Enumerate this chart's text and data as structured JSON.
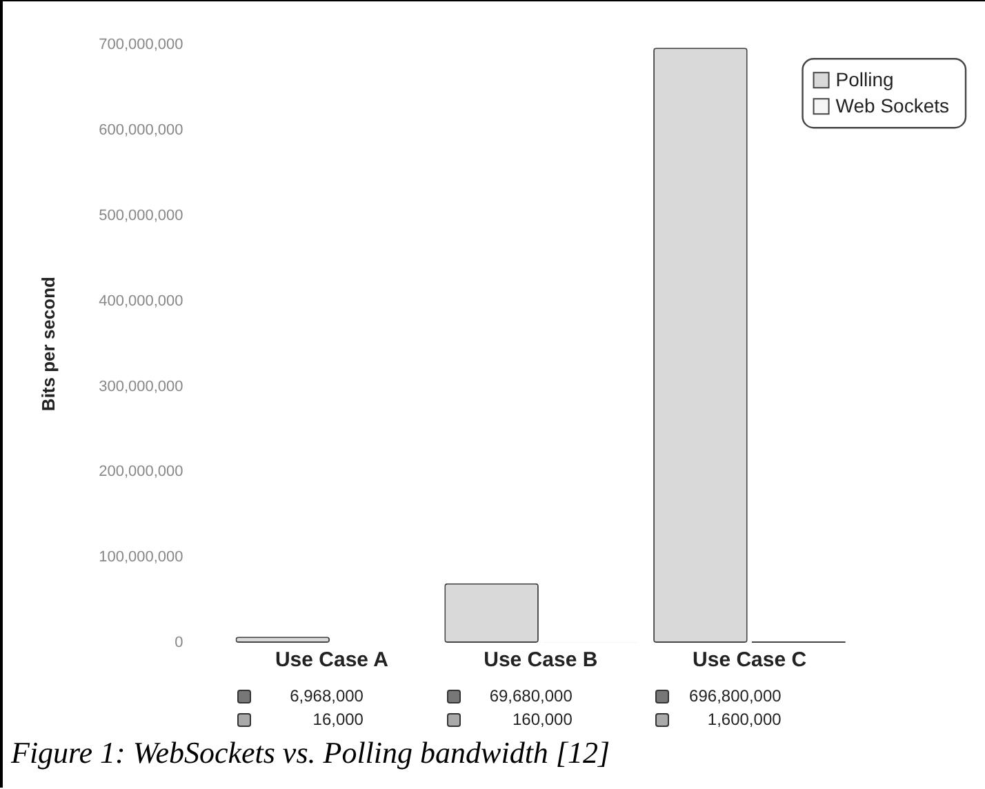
{
  "chart_data": {
    "type": "bar",
    "ylabel": "Bits per second",
    "categories": [
      "Use Case A",
      "Use Case B",
      "Use Case C"
    ],
    "series": [
      {
        "name": "Polling",
        "color": "#d9d9d9",
        "values": [
          6968000,
          69680000,
          696800000
        ],
        "value_labels": [
          "6,968,000",
          "69,680,000",
          "696,800,000"
        ]
      },
      {
        "name": "Web Sockets",
        "color": "#f6f6f6",
        "values": [
          16000,
          160000,
          1600000
        ],
        "value_labels": [
          "16,000",
          "160,000",
          "1,600,000"
        ]
      }
    ],
    "ylim": [
      0,
      700000000
    ],
    "yticks": [
      {
        "value": 0,
        "label": "0"
      },
      {
        "value": 100000000,
        "label": "100,000,000"
      },
      {
        "value": 200000000,
        "label": "200,000,000"
      },
      {
        "value": 300000000,
        "label": "300,000,000"
      },
      {
        "value": 400000000,
        "label": "400,000,000"
      },
      {
        "value": 500000000,
        "label": "500,000,000"
      },
      {
        "value": 600000000,
        "label": "600,000,000"
      },
      {
        "value": 700000000,
        "label": "700,000,000"
      }
    ],
    "grid": false,
    "legend": "top right",
    "annotations": [
      "Figure 1: WebSockets vs. Polling bandwidth [12]"
    ]
  }
}
